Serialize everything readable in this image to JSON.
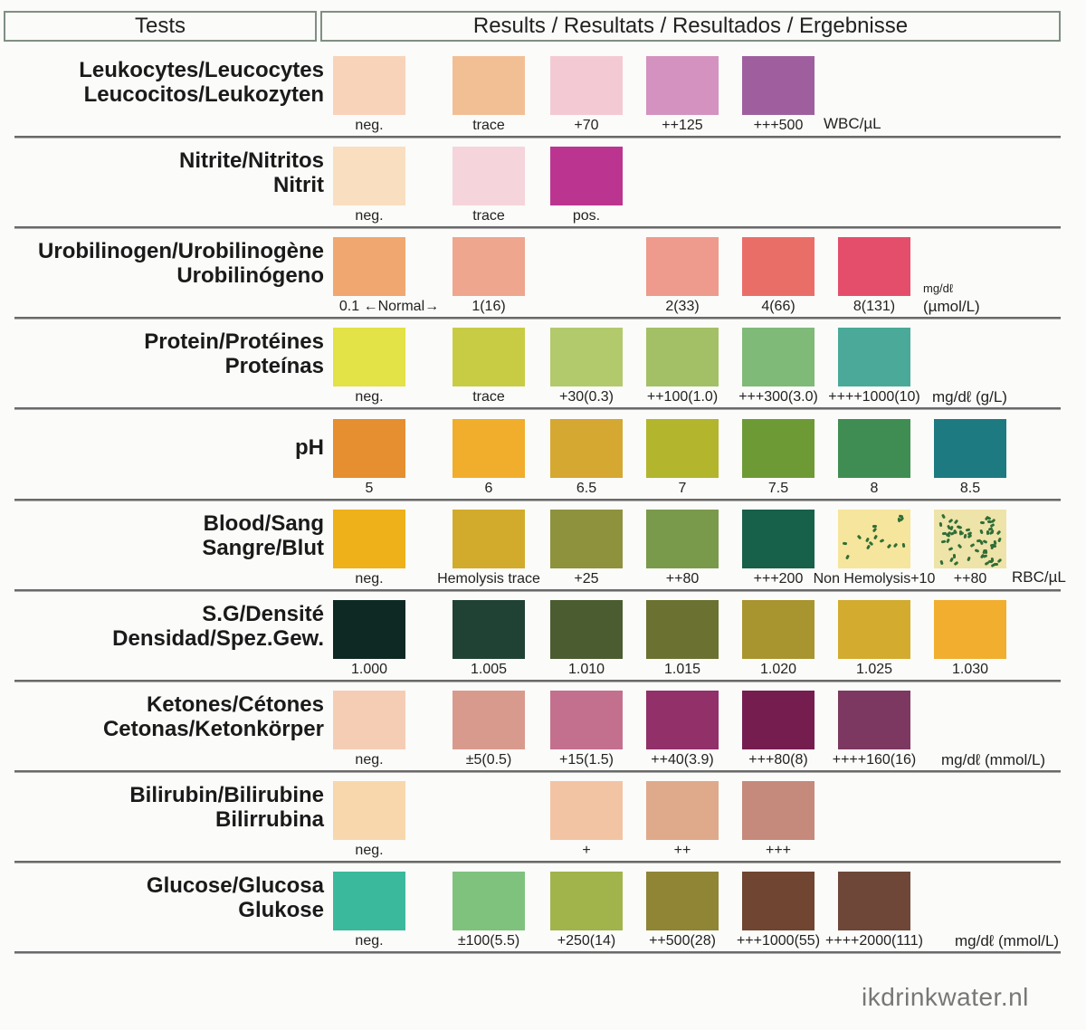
{
  "header": {
    "tests": "Tests",
    "results": "Results / Resultats / Resultados / Ergebnisse"
  },
  "rows": [
    {
      "label": [
        "Leukocytes/Leucocytes",
        "Leucocitos/Leukozyten"
      ],
      "unit": "WBC/µL",
      "cells": [
        {
          "color": "#f8d3b9",
          "label": "neg."
        },
        {
          "color": "#f2bf95",
          "label": "trace"
        },
        {
          "color": "#f3cad4",
          "label": "+70"
        },
        {
          "color": "#d492c0",
          "label": "++125"
        },
        {
          "color": "#9f5f9f",
          "label": "+++500"
        }
      ]
    },
    {
      "label": [
        "Nitrite/Nitritos",
        "Nitrit"
      ],
      "cells": [
        {
          "color": "#f9dfbf",
          "label": "neg."
        },
        {
          "color": "#f5d4dc",
          "label": "trace"
        },
        {
          "color": "#bb3590",
          "label": "pos."
        }
      ]
    },
    {
      "label": [
        "Urobilinogen/Urobilinogène",
        "Urobilinógeno"
      ],
      "unit_top": "mg/dℓ",
      "unit": "(µmol/L)",
      "cells": [
        {
          "color": "#f0a870",
          "label": "0.1 ←Normal→"
        },
        {
          "color": "#eea68f",
          "label": "1(16)"
        },
        null,
        {
          "color": "#ee9a8d",
          "label": "2(33)"
        },
        {
          "color": "#ea6e68",
          "label": "4(66)"
        },
        {
          "color": "#e44e6b",
          "label": "8(131)"
        }
      ]
    },
    {
      "label": [
        "Protein/Protéines",
        "Proteínas"
      ],
      "unit": "mg/dℓ (g/L)",
      "cells": [
        {
          "color": "#e3e246",
          "label": "neg."
        },
        {
          "color": "#c8cc45",
          "label": "trace"
        },
        {
          "color": "#b2ca6c",
          "label": "+30(0.3)"
        },
        {
          "color": "#a3c066",
          "label": "++100(1.0)"
        },
        {
          "color": "#7fba79",
          "label": "+++300(3.0)"
        },
        {
          "color": "#4aa998",
          "label": "++++1000(10)"
        }
      ]
    },
    {
      "label": [
        "pH"
      ],
      "cells": [
        {
          "color": "#e58f30",
          "label": "5"
        },
        {
          "color": "#f1ae2c",
          "label": "6"
        },
        {
          "color": "#d5a832",
          "label": "6.5"
        },
        {
          "color": "#b3b52d",
          "label": "7"
        },
        {
          "color": "#6e9a36",
          "label": "7.5"
        },
        {
          "color": "#3f8d52",
          "label": "8"
        },
        {
          "color": "#1d7a80",
          "label": "8.5"
        }
      ]
    },
    {
      "label": [
        "Blood/Sang",
        "Sangre/Blut"
      ],
      "unit": "RBC/µL",
      "cells": [
        {
          "color": "#eeb11a",
          "label": "neg."
        },
        {
          "color": "#d3ab2c",
          "label": "Hemolysis trace"
        },
        {
          "color": "#8e923d",
          "label": "+25"
        },
        {
          "color": "#7a9a4b",
          "label": "++80"
        },
        {
          "color": "#17604a",
          "label": "+++200"
        },
        {
          "color": "#f6e59c",
          "label": "Non Hemolysis+10",
          "speckled": "few"
        },
        {
          "color": "#eee3a8",
          "label": "++80",
          "speckled": "many"
        }
      ]
    },
    {
      "label": [
        "S.G/Densité",
        "Densidad/Spez.Gew."
      ],
      "cells": [
        {
          "color": "#0e2924",
          "label": "1.000"
        },
        {
          "color": "#1f4234",
          "label": "1.005"
        },
        {
          "color": "#4a5c30",
          "label": "1.010"
        },
        {
          "color": "#6b7130",
          "label": "1.015"
        },
        {
          "color": "#a9952f",
          "label": "1.020"
        },
        {
          "color": "#d3ab2f",
          "label": "1.025"
        },
        {
          "color": "#f1ae2f",
          "label": "1.030"
        }
      ]
    },
    {
      "label": [
        "Ketones/Cétones",
        "Cetonas/Ketonkörper"
      ],
      "unit": "mg/dℓ (mmol/L)",
      "cells": [
        {
          "color": "#f5cdb5",
          "label": "neg."
        },
        {
          "color": "#d99a8e",
          "label": "±5(0.5)"
        },
        {
          "color": "#c3708e",
          "label": "+15(1.5)"
        },
        {
          "color": "#92306a",
          "label": "++40(3.9)"
        },
        {
          "color": "#761d50",
          "label": "+++80(8)"
        },
        {
          "color": "#7c3860",
          "label": "++++160(16)"
        }
      ]
    },
    {
      "label": [
        "Bilirubin/Bilirubine",
        "Bilirrubina"
      ],
      "cells": [
        {
          "color": "#f8d7ad",
          "label": "neg."
        },
        null,
        {
          "color": "#f2c4a4",
          "label": "+"
        },
        {
          "color": "#dfa98b",
          "label": "++"
        },
        {
          "color": "#c58a7b",
          "label": "+++"
        }
      ]
    },
    {
      "label": [
        "Glucose/Glucosa",
        "Glukose"
      ],
      "unit": "mg/dℓ (mmol/L)",
      "cells": [
        {
          "color": "#3bb99c",
          "label": "neg."
        },
        {
          "color": "#7fc27e",
          "label": "±100(5.5)"
        },
        {
          "color": "#a1b44c",
          "label": "+250(14)"
        },
        {
          "color": "#8f8535",
          "label": "++500(28)"
        },
        {
          "color": "#704531",
          "label": "+++1000(55)"
        },
        {
          "color": "#6e4739",
          "label": "++++2000(111)"
        }
      ]
    }
  ],
  "watermark": "ikdrinkwater.nl"
}
